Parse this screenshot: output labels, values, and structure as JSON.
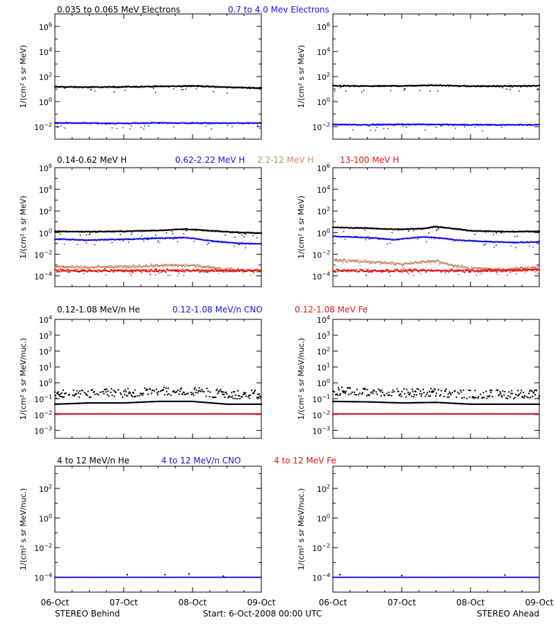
{
  "colors": {
    "black": "#000000",
    "blue": "#1414e6",
    "tan": "#c88c6e",
    "red": "#e61414"
  },
  "footer": {
    "left": "STEREO Behind",
    "center": "Start:  6-Oct-2008 00:00 UTC",
    "right": "STEREO Ahead"
  },
  "chart_data": [
    {
      "type": "scatter",
      "row": 0,
      "legend": [
        {
          "text": "0.035 to 0.065 MeV Electrons",
          "color": "#000000"
        },
        {
          "text": "0.7 to 4.0 Mev Electrons",
          "color": "#1414e6"
        }
      ],
      "ylabel": "1/(cm² s sr MeV)",
      "yscale": "log",
      "ylim_exp": [
        -3,
        7
      ],
      "ytick_exp": [
        -2,
        0,
        2,
        4,
        6
      ],
      "xticks": [
        "06-Oct",
        "07-Oct",
        "08-Oct",
        "09-Oct"
      ],
      "xlim_days": [
        0,
        3
      ],
      "panels": [
        {
          "spacecraft": "STEREO Behind",
          "series": [
            {
              "name": "0.035 to 0.065 MeV Electrons",
              "color": "#000000",
              "points": [
                [
                  0,
                  15
                ],
                [
                  0.5,
                  14
                ],
                [
                  1,
                  15
                ],
                [
                  1.5,
                  16
                ],
                [
                  2.0,
                  18
                ],
                [
                  2.5,
                  14
                ],
                [
                  3,
                  12
                ]
              ]
            },
            {
              "name": "0.7 to 4.0 Mev Electrons",
              "color": "#1414e6",
              "points": [
                [
                  0,
                  0.02
                ],
                [
                  0.5,
                  0.019
                ],
                [
                  1,
                  0.018
                ],
                [
                  1.5,
                  0.02
                ],
                [
                  2,
                  0.019
                ],
                [
                  2.5,
                  0.019
                ],
                [
                  3,
                  0.019
                ]
              ]
            }
          ]
        },
        {
          "spacecraft": "STEREO Ahead",
          "series": [
            {
              "name": "0.035 to 0.065 MeV Electrons",
              "color": "#000000",
              "points": [
                [
                  0,
                  18
                ],
                [
                  0.5,
                  17
                ],
                [
                  1,
                  18
                ],
                [
                  1.5,
                  20
                ],
                [
                  2,
                  17
                ],
                [
                  2.5,
                  17
                ],
                [
                  3,
                  18
                ]
              ]
            },
            {
              "name": "0.7 to 4.0 Mev Electrons",
              "color": "#1414e6",
              "points": [
                [
                  0,
                  0.015
                ],
                [
                  0.5,
                  0.014
                ],
                [
                  1,
                  0.015
                ],
                [
                  1.5,
                  0.015
                ],
                [
                  2,
                  0.014
                ],
                [
                  2.5,
                  0.014
                ],
                [
                  3,
                  0.014
                ]
              ]
            }
          ]
        }
      ]
    },
    {
      "type": "scatter",
      "row": 1,
      "legend": [
        {
          "text": "0.14-0.62 MeV H",
          "color": "#000000"
        },
        {
          "text": "0.62-2.22 MeV H",
          "color": "#1414e6"
        },
        {
          "text": "2.2-12 MeV H",
          "color": "#c88c6e"
        },
        {
          "text": "13-100 MeV H",
          "color": "#e61414"
        }
      ],
      "ylabel": "1/(cm² s sr MeV)",
      "yscale": "log",
      "ylim_exp": [
        -5,
        6
      ],
      "ytick_exp": [
        -4,
        -2,
        0,
        2,
        4,
        6
      ],
      "xticks": [
        "06-Oct",
        "07-Oct",
        "08-Oct",
        "09-Oct"
      ],
      "xlim_days": [
        0,
        3
      ],
      "panels": [
        {
          "spacecraft": "STEREO Behind",
          "series": [
            {
              "name": "0.14-0.62 MeV H",
              "color": "#000000",
              "points": [
                [
                  0,
                  1.3
                ],
                [
                  0.5,
                  1.2
                ],
                [
                  1,
                  1.3
                ],
                [
                  1.5,
                  1.6
                ],
                [
                  1.9,
                  2.1
                ],
                [
                  2.3,
                  1.4
                ],
                [
                  2.7,
                  1.0
                ],
                [
                  3,
                  0.9
                ]
              ]
            },
            {
              "name": "0.62-2.22 MeV H",
              "color": "#1414e6",
              "points": [
                [
                  0,
                  0.25
                ],
                [
                  0.5,
                  0.2
                ],
                [
                  1,
                  0.24
                ],
                [
                  1.5,
                  0.3
                ],
                [
                  1.9,
                  0.35
                ],
                [
                  2.3,
                  0.16
                ],
                [
                  2.7,
                  0.1
                ],
                [
                  3,
                  0.09
                ]
              ]
            },
            {
              "name": "2.2-12 MeV H",
              "color": "#c88c6e",
              "points": [
                [
                  0,
                  0.0007
                ],
                [
                  0.5,
                  0.0006
                ],
                [
                  1,
                  0.0007
                ],
                [
                  1.5,
                  0.0009
                ],
                [
                  2,
                  0.0009
                ],
                [
                  2.5,
                  0.0004
                ],
                [
                  3,
                  0.0003
                ]
              ]
            },
            {
              "name": "13-100 MeV H",
              "color": "#e61414",
              "points": [
                [
                  0,
                  0.0003
                ],
                [
                  0.5,
                  0.0003
                ],
                [
                  1,
                  0.0003
                ],
                [
                  1.5,
                  0.0003
                ],
                [
                  2,
                  0.0003
                ],
                [
                  2.5,
                  0.0003
                ],
                [
                  3,
                  0.0003
                ]
              ]
            }
          ]
        },
        {
          "spacecraft": "STEREO Ahead",
          "series": [
            {
              "name": "0.14-0.62 MeV H",
              "color": "#000000",
              "points": [
                [
                  0,
                  3.0
                ],
                [
                  0.5,
                  2.6
                ],
                [
                  0.9,
                  2.0
                ],
                [
                  1.3,
                  2.3
                ],
                [
                  1.5,
                  3.5
                ],
                [
                  1.7,
                  2.5
                ],
                [
                  2,
                  1.5
                ],
                [
                  2.5,
                  1.2
                ],
                [
                  3,
                  1.3
                ]
              ]
            },
            {
              "name": "0.62-2.22 MeV H",
              "color": "#1414e6",
              "points": [
                [
                  0,
                  0.45
                ],
                [
                  0.5,
                  0.35
                ],
                [
                  0.9,
                  0.22
                ],
                [
                  1.3,
                  0.4
                ],
                [
                  1.6,
                  0.3
                ],
                [
                  1.8,
                  0.2
                ],
                [
                  2.2,
                  0.15
                ],
                [
                  2.6,
                  0.12
                ],
                [
                  3,
                  0.14
                ]
              ]
            },
            {
              "name": "2.2-12 MeV H",
              "color": "#c88c6e",
              "points": [
                [
                  0,
                  0.003
                ],
                [
                  0.5,
                  0.002
                ],
                [
                  1,
                  0.0012
                ],
                [
                  1.5,
                  0.0025
                ],
                [
                  1.7,
                  0.001
                ],
                [
                  2,
                  0.0005
                ],
                [
                  2.5,
                  0.0004
                ],
                [
                  3,
                  0.0006
                ]
              ]
            },
            {
              "name": "13-100 MeV H",
              "color": "#e61414",
              "points": [
                [
                  0,
                  0.0003
                ],
                [
                  0.5,
                  0.0003
                ],
                [
                  1,
                  0.0003
                ],
                [
                  1.5,
                  0.0003
                ],
                [
                  2,
                  0.0003
                ],
                [
                  2.5,
                  0.0003
                ],
                [
                  3,
                  0.0004
                ]
              ]
            }
          ]
        }
      ]
    },
    {
      "type": "scatter",
      "row": 2,
      "legend": [
        {
          "text": "0.12-1.08 MeV/n He",
          "color": "#000000"
        },
        {
          "text": "0.12-1.08 MeV/n CNO",
          "color": "#1414e6"
        },
        {
          "text": "0.12-1.08 MeV Fe",
          "color": "#e61414"
        }
      ],
      "ylabel": "1/(cm² s sr MeV/nuc.)",
      "yscale": "log",
      "ylim_exp": [
        -3.5,
        4
      ],
      "ytick_exp": [
        -3,
        -2,
        -1,
        0,
        1,
        2,
        3,
        4
      ],
      "xticks": [
        "06-Oct",
        "07-Oct",
        "08-Oct",
        "09-Oct"
      ],
      "xlim_days": [
        0,
        3
      ],
      "panels": [
        {
          "spacecraft": "STEREO Behind",
          "series": [
            {
              "name": "0.12-1.08 MeV/n He",
              "color": "#000000",
              "points": [
                [
                  0,
                  0.1
                ],
                [
                  0.5,
                  0.12
                ],
                [
                  1,
                  0.12
                ],
                [
                  1.5,
                  0.15
                ],
                [
                  2,
                  0.15
                ],
                [
                  2.5,
                  0.1
                ],
                [
                  3,
                  0.1
                ]
              ]
            },
            {
              "name": "0.12-1.08 MeV/n CNO",
              "color": "#1414e6",
              "points": [
                [
                  0,
                  0.011
                ],
                [
                  1,
                  0.011
                ],
                [
                  2,
                  0.011
                ],
                [
                  3,
                  0.011
                ]
              ]
            },
            {
              "name": "0.12-1.08 MeV Fe",
              "color": "#e61414",
              "points": [
                [
                  0,
                  0.011
                ],
                [
                  1,
                  0.011
                ],
                [
                  2,
                  0.011
                ],
                [
                  3,
                  0.011
                ]
              ]
            }
          ]
        },
        {
          "spacecraft": "STEREO Ahead",
          "series": [
            {
              "name": "0.12-1.08 MeV/n He",
              "color": "#000000",
              "points": [
                [
                  0,
                  0.15
                ],
                [
                  0.5,
                  0.14
                ],
                [
                  1,
                  0.12
                ],
                [
                  1.5,
                  0.13
                ],
                [
                  2,
                  0.1
                ],
                [
                  2.5,
                  0.1
                ],
                [
                  3,
                  0.1
                ]
              ]
            },
            {
              "name": "0.12-1.08 MeV/n CNO",
              "color": "#1414e6",
              "points": [
                [
                  0,
                  0.011
                ],
                [
                  1,
                  0.011
                ],
                [
                  2,
                  0.011
                ],
                [
                  3,
                  0.011
                ]
              ]
            },
            {
              "name": "0.12-1.08 MeV Fe",
              "color": "#e61414",
              "points": [
                [
                  0,
                  0.011
                ],
                [
                  1,
                  0.011
                ],
                [
                  2,
                  0.011
                ],
                [
                  3,
                  0.011
                ]
              ]
            }
          ]
        }
      ]
    },
    {
      "type": "scatter",
      "row": 3,
      "legend": [
        {
          "text": "4 to 12 MeV/n He",
          "color": "#000000"
        },
        {
          "text": "4 to 12 MeV/n CNO",
          "color": "#1414e6"
        },
        {
          "text": "4 to 12 MeV Fe",
          "color": "#e61414"
        }
      ],
      "ylabel": "1/(cm² s sr MeV/nuc.)",
      "yscale": "log",
      "ylim_exp": [
        -5,
        3.5
      ],
      "ytick_exp": [
        -4,
        -2,
        0,
        2
      ],
      "xticks": [
        "06-Oct",
        "07-Oct",
        "08-Oct",
        "09-Oct"
      ],
      "xlim_days": [
        0,
        3
      ],
      "panels": [
        {
          "spacecraft": "STEREO Behind",
          "series": [
            {
              "name": "4 to 12 MeV/n CNO",
              "color": "#1414e6",
              "points": [
                [
                  0,
                  0.0001
                ],
                [
                  1,
                  0.0001
                ],
                [
                  2,
                  0.0001
                ],
                [
                  3,
                  0.0001
                ]
              ]
            },
            {
              "name": "4 to 12 MeV/n He",
              "color": "#000000",
              "points": [
                [
                  1.05,
                  0.00015
                ],
                [
                  1.6,
                  0.00015
                ],
                [
                  1.95,
                  0.00017
                ],
                [
                  2.45,
                  0.00012
                ]
              ]
            }
          ]
        },
        {
          "spacecraft": "STEREO Ahead",
          "series": [
            {
              "name": "4 to 12 MeV/n CNO",
              "color": "#1414e6",
              "points": [
                [
                  0,
                  0.0001
                ],
                [
                  1,
                  0.0001
                ],
                [
                  2,
                  0.0001
                ],
                [
                  3,
                  0.0001
                ]
              ]
            },
            {
              "name": "4 to 12 MeV/n He",
              "color": "#000000",
              "points": [
                [
                  0.1,
                  0.00015
                ],
                [
                  1.0,
                  0.00013
                ],
                [
                  2.5,
                  0.00014
                ]
              ]
            }
          ]
        }
      ]
    }
  ]
}
